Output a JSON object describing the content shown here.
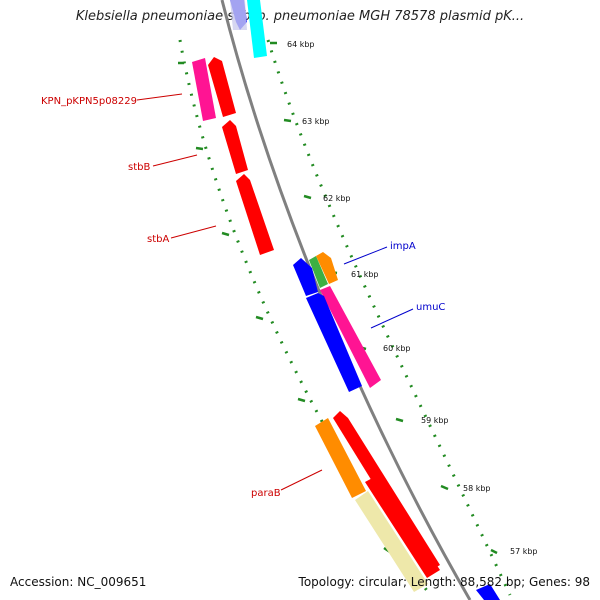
{
  "title": "Klebsiella pneumoniae subsp. pneumoniae MGH 78578 plasmid pK...",
  "accession": "Accession: NC_009651",
  "summary": "Topology: circular; Length: 88,582 bp; Genes: 98",
  "colors": {
    "backbone": "#808080",
    "tick": "#228b22",
    "label_reverse": "#cc0000",
    "label_forward": "#0000cc",
    "red": "#ff0000",
    "magenta": "#ff1493",
    "orange": "#ff8c00",
    "green": "#3cb043",
    "blue": "#0000ff",
    "cyan": "#00ffff",
    "light_yellow": "#eee8aa"
  },
  "tick_labels": [
    "64 kbp",
    "63 kbp",
    "62 kbp",
    "61 kbp",
    "60 kbp",
    "59 kbp",
    "58 kbp",
    "57 kbp"
  ],
  "gene_labels": [
    {
      "id": "kpn",
      "text": "KPN_pKPN5p08229",
      "strand": "reverse"
    },
    {
      "id": "stbB",
      "text": "stbB",
      "strand": "reverse"
    },
    {
      "id": "stbA",
      "text": "stbA",
      "strand": "reverse"
    },
    {
      "id": "impA",
      "text": "impA",
      "strand": "forward"
    },
    {
      "id": "umuC",
      "text": "umuC",
      "strand": "forward"
    },
    {
      "id": "paraB",
      "text": "paraB",
      "strand": "reverse"
    }
  ]
}
